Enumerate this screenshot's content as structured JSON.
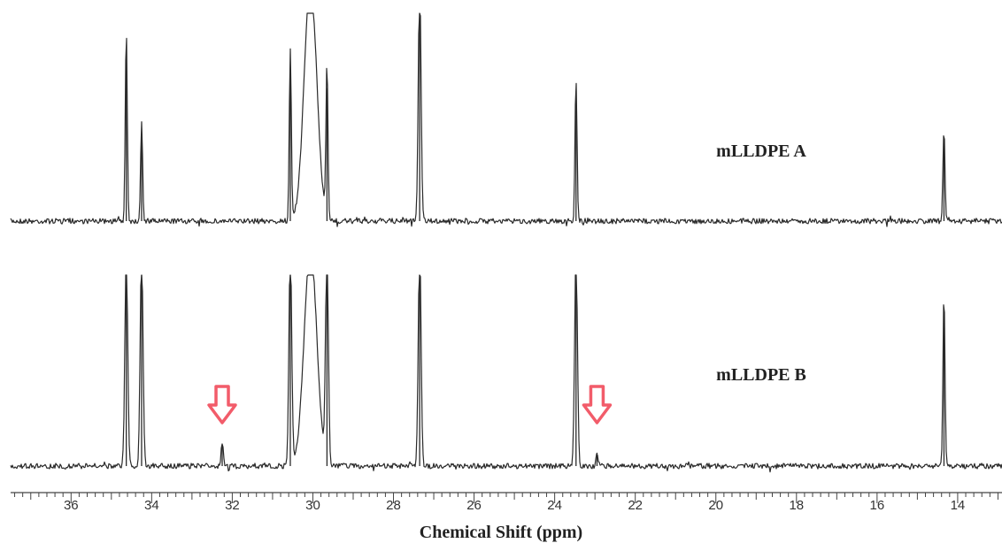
{
  "chart_data": {
    "type": "line",
    "title": "",
    "xlabel": "Chemical Shift (ppm)",
    "ylabel": "",
    "xlim": [
      37.5,
      12.9
    ],
    "x_reversed": true,
    "xticks": [
      "36",
      "34",
      "32",
      "30",
      "28",
      "26",
      "24",
      "22",
      "20",
      "18",
      "16",
      "14"
    ],
    "series": [
      {
        "name": "mLLDPE A",
        "peaks": [
          {
            "ppm": 34.63,
            "height": 0.8
          },
          {
            "ppm": 34.25,
            "height": 0.42
          },
          {
            "ppm": 30.56,
            "height": 0.72
          },
          {
            "ppm": 30.06,
            "height": 1.0,
            "clipped": true
          },
          {
            "ppm": 29.65,
            "height": 0.64
          },
          {
            "ppm": 27.35,
            "height": 1.0,
            "clipped": true
          },
          {
            "ppm": 23.47,
            "height": 0.6
          },
          {
            "ppm": 14.34,
            "height": 0.39
          }
        ]
      },
      {
        "name": "mLLDPE B",
        "peaks": [
          {
            "ppm": 34.63,
            "height": 1.0,
            "clipped": true
          },
          {
            "ppm": 34.25,
            "height": 1.0,
            "clipped": true
          },
          {
            "ppm": 32.25,
            "height": 0.11
          },
          {
            "ppm": 30.56,
            "height": 1.0,
            "clipped": true
          },
          {
            "ppm": 30.06,
            "height": 1.0,
            "clipped": true
          },
          {
            "ppm": 29.65,
            "height": 1.0,
            "clipped": true
          },
          {
            "ppm": 27.35,
            "height": 1.0,
            "clipped": true
          },
          {
            "ppm": 23.47,
            "height": 1.0,
            "clipped": true
          },
          {
            "ppm": 22.95,
            "height": 0.07
          },
          {
            "ppm": 14.34,
            "height": 0.8
          }
        ]
      }
    ],
    "annotations": [
      {
        "type": "down-arrow",
        "ppm": 32.25,
        "series": "mLLDPE B",
        "color": "#f25c6a"
      },
      {
        "type": "down-arrow",
        "ppm": 22.95,
        "series": "mLLDPE B",
        "color": "#f25c6a"
      }
    ]
  }
}
